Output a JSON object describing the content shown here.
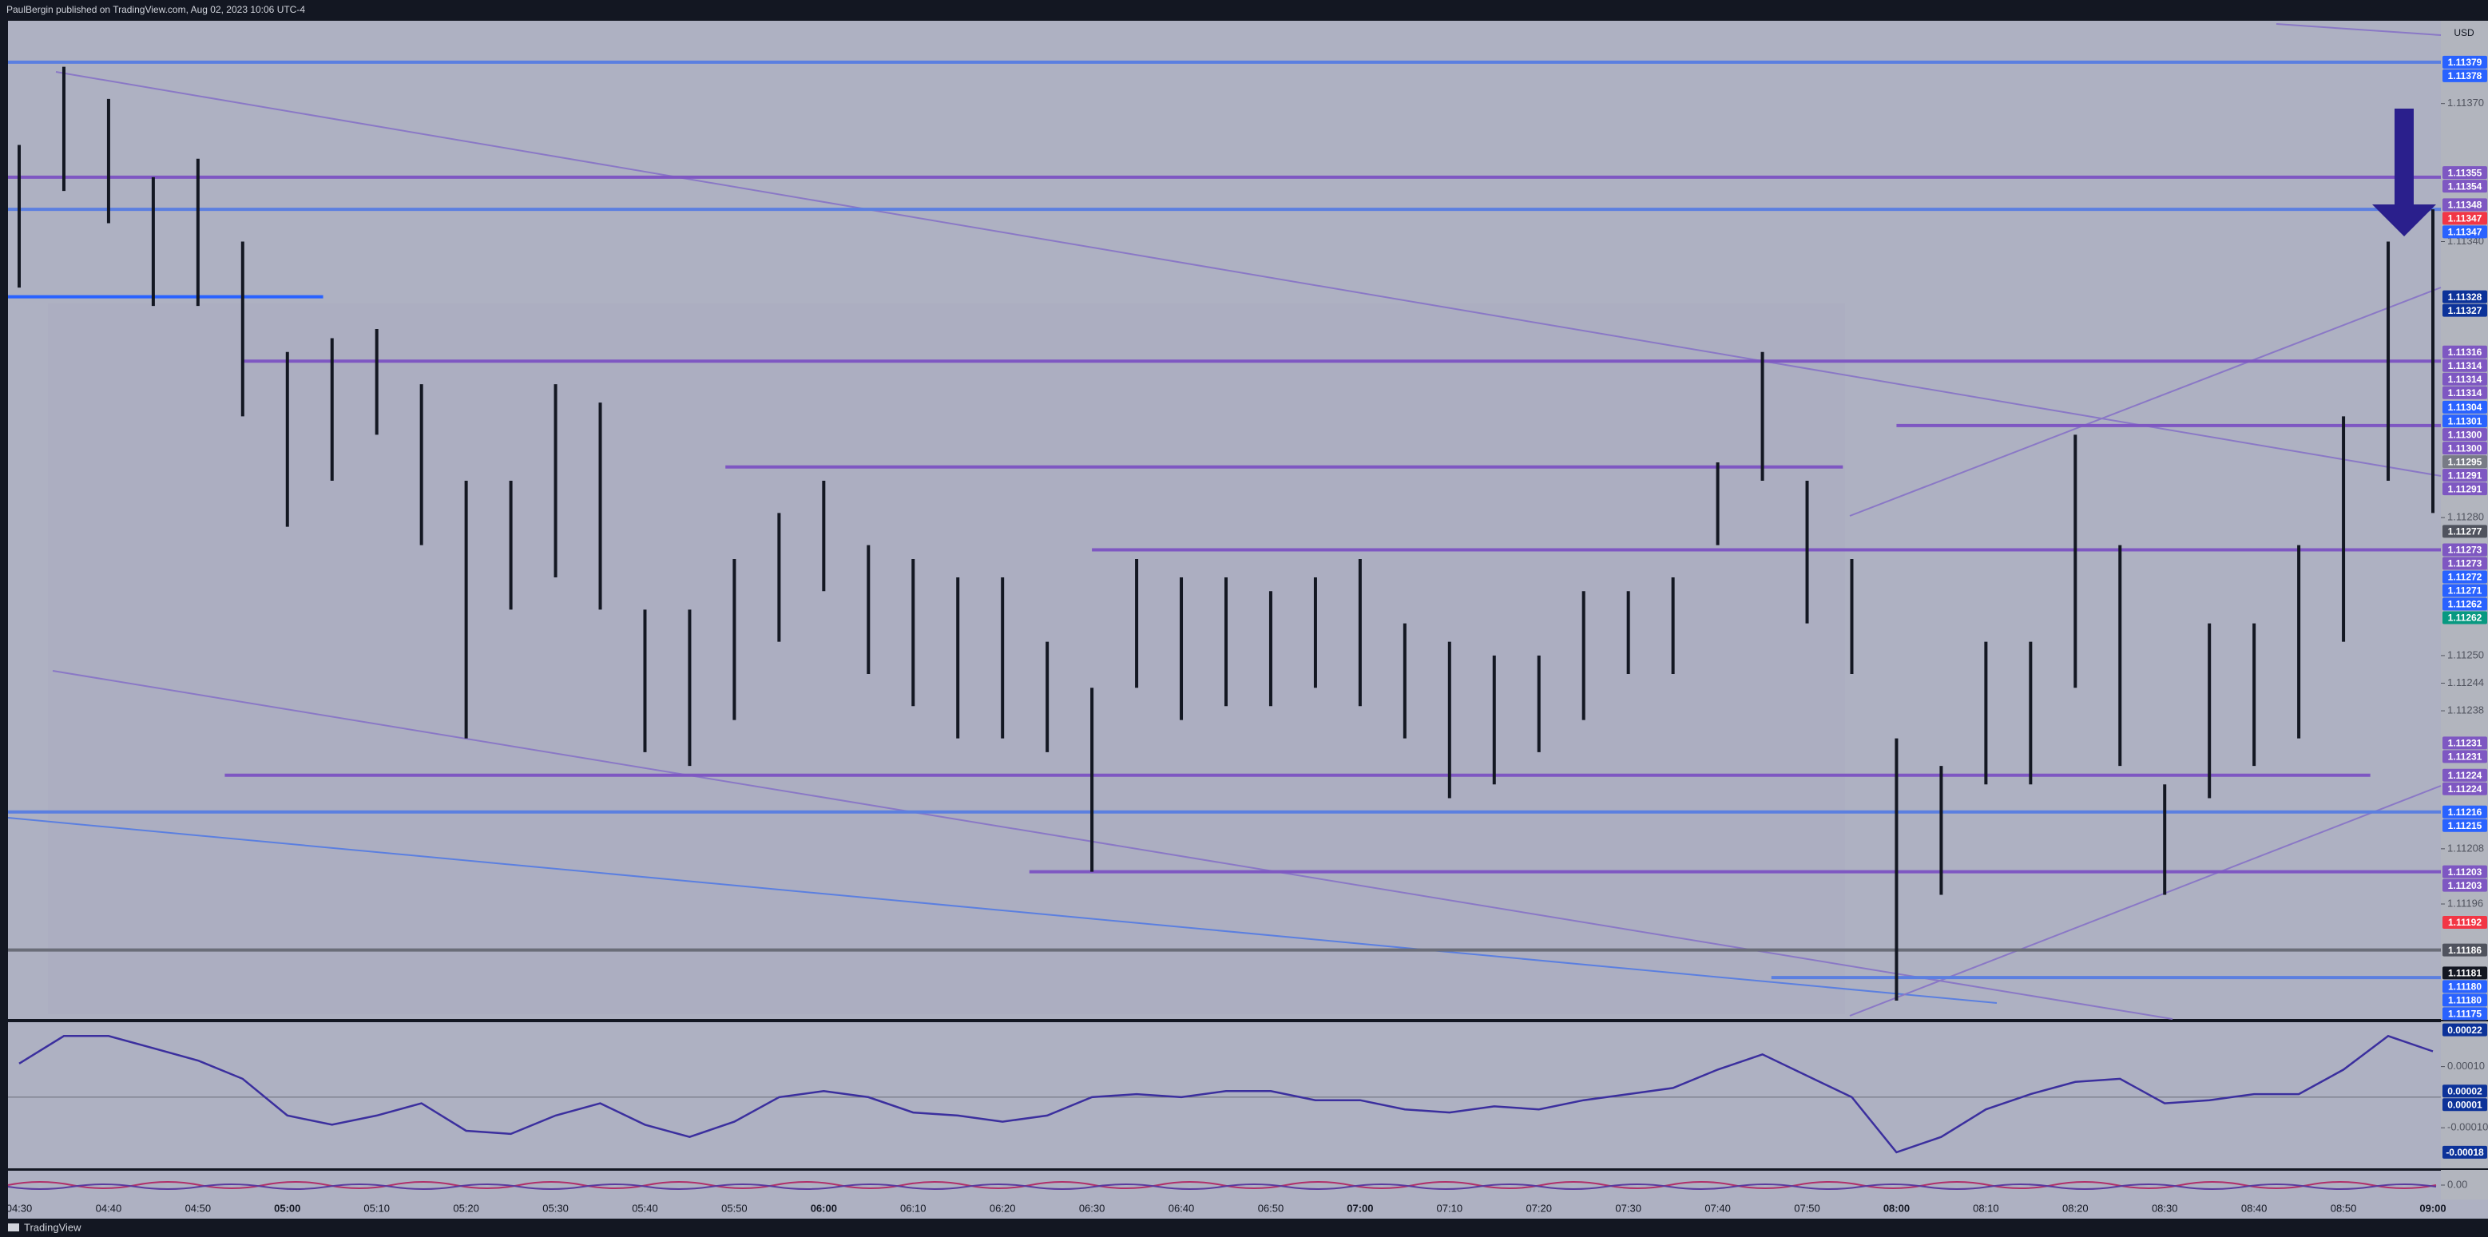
{
  "chart_data": [
    {
      "type": "ohlc",
      "title": "PaulBergin published on TradingView.com, Aug 02, 2023 10:06 UTC-4",
      "source": "TradingView",
      "currency": "USD",
      "color": "#131722",
      "x": [
        "04:30",
        "04:35",
        "04:40",
        "04:45",
        "04:50",
        "04:55",
        "05:00",
        "05:05",
        "05:10",
        "05:15",
        "05:20",
        "05:25",
        "05:30",
        "05:35",
        "05:40",
        "05:45",
        "05:50",
        "05:55",
        "06:00",
        "06:05",
        "06:10",
        "06:15",
        "06:20",
        "06:25",
        "06:30",
        "06:35",
        "06:40",
        "06:45",
        "06:50",
        "06:55",
        "07:00",
        "07:05",
        "07:10",
        "07:15",
        "07:20",
        "07:25",
        "07:30",
        "07:35",
        "07:40",
        "07:45",
        "07:50",
        "07:55",
        "08:00",
        "08:05",
        "08:10",
        "08:15",
        "08:20",
        "08:25",
        "08:30",
        "08:35",
        "08:40",
        "08:45",
        "08:50",
        "08:55",
        "09:00"
      ],
      "high": [
        1.11361,
        1.11378,
        1.11371,
        1.11354,
        1.11358,
        1.1134,
        1.11316,
        1.11319,
        1.11321,
        1.11309,
        1.11288,
        1.11288,
        1.11309,
        1.11305,
        1.1126,
        1.1126,
        1.11271,
        1.11281,
        1.11288,
        1.11274,
        1.11271,
        1.11267,
        1.11267,
        1.11253,
        1.11243,
        1.11271,
        1.11267,
        1.11267,
        1.11264,
        1.11267,
        1.11271,
        1.11257,
        1.11253,
        1.1125,
        1.1125,
        1.11264,
        1.11264,
        1.11267,
        1.11292,
        1.11316,
        1.11288,
        1.11271,
        1.11232,
        1.11226,
        1.11253,
        1.11253,
        1.11298,
        1.11274,
        1.11222,
        1.11257,
        1.11257,
        1.11274,
        1.11302,
        1.1134,
        1.11347
      ],
      "low": [
        1.1133,
        1.11351,
        1.11344,
        1.11326,
        1.11326,
        1.11302,
        1.11278,
        1.11288,
        1.11298,
        1.11274,
        1.11232,
        1.1126,
        1.11267,
        1.1126,
        1.11229,
        1.11226,
        1.11236,
        1.11253,
        1.11264,
        1.11246,
        1.11239,
        1.11232,
        1.11232,
        1.11229,
        1.11203,
        1.11243,
        1.11236,
        1.11239,
        1.11239,
        1.11243,
        1.11239,
        1.11232,
        1.11219,
        1.11222,
        1.11229,
        1.11236,
        1.11246,
        1.11246,
        1.11274,
        1.11288,
        1.11257,
        1.11246,
        1.11175,
        1.11198,
        1.11222,
        1.11222,
        1.11243,
        1.11226,
        1.11198,
        1.11219,
        1.11226,
        1.11232,
        1.11253,
        1.11288,
        1.11281
      ],
      "xticks": [
        "04:30",
        "04:40",
        "04:50",
        "05:00",
        "05:10",
        "05:20",
        "05:30",
        "05:40",
        "05:50",
        "06:00",
        "06:10",
        "06:20",
        "06:30",
        "06:40",
        "06:50",
        "07:00",
        "07:10",
        "07:20",
        "07:30",
        "07:40",
        "07:50",
        "08:00",
        "08:10",
        "08:20",
        "08:30",
        "08:40",
        "08:50",
        "09:00"
      ],
      "ylim": [
        1.11171,
        1.11388
      ],
      "yticks": [
        {
          "value": 1.1137,
          "label": "1.11370"
        },
        {
          "value": 1.1134,
          "label": "1.11340"
        },
        {
          "value": 1.1128,
          "label": "1.11280"
        },
        {
          "value": 1.1125,
          "label": "1.11250"
        },
        1.11244,
        1.11238,
        1.11208,
        1.11196
      ],
      "levels": [
        {
          "value": 1.11379,
          "color": "#5b7fe0"
        },
        {
          "value": 1.11354,
          "color": "#7e57c2"
        },
        {
          "value": 1.11347,
          "color": "#5b7fe0"
        },
        {
          "value": 1.11328,
          "color": "#2962ff",
          "end": "05:04"
        },
        {
          "value": 1.11314,
          "color": "#7e57c2",
          "start": "04:55"
        },
        {
          "value": 1.113,
          "color": "#7e57c2",
          "start": "08:00"
        },
        {
          "value": 1.11291,
          "color": "#7e57c2",
          "start": "05:49",
          "end": "07:54"
        },
        {
          "value": 1.11273,
          "color": "#7e57c2",
          "start": "06:30"
        },
        {
          "value": 1.11224,
          "color": "#7e57c2",
          "start": "04:53",
          "end": "08:53"
        },
        {
          "value": 1.11216,
          "color": "#5b7fe0"
        },
        {
          "value": 1.11203,
          "color": "#7e57c2",
          "start": "06:23"
        },
        {
          "value": 1.11186,
          "color": "#6a6d78"
        },
        {
          "value": 1.1118,
          "color": "#5b7fe0",
          "start": "07:46"
        }
      ],
      "tags": [
        {
          "value": 1.11379,
          "color": "#2962ff"
        },
        {
          "value": 1.11378,
          "color": "#2962ff"
        },
        {
          "value": 1.11355,
          "color": "#7e57c2"
        },
        {
          "value": 1.11354,
          "color": "#7e57c2"
        },
        {
          "value": 1.11348,
          "color": "#7e57c2"
        },
        {
          "value": 1.11347,
          "color": "#f23645"
        },
        {
          "value": 1.11347,
          "color": "#2962ff"
        },
        {
          "value": 1.11328,
          "color": "#0c3299"
        },
        {
          "value": 1.11327,
          "color": "#0c3299"
        },
        {
          "value": 1.11316,
          "color": "#7e57c2"
        },
        {
          "value": 1.11314,
          "color": "#7e57c2"
        },
        {
          "value": 1.11314,
          "color": "#7e57c2"
        },
        {
          "value": 1.11314,
          "color": "#7e57c2"
        },
        {
          "value": 1.11304,
          "color": "#2962ff"
        },
        {
          "value": 1.11301,
          "color": "#2962ff"
        },
        {
          "value": 1.113,
          "label": "1.11300",
          "color": "#7e57c2"
        },
        {
          "value": 1.113,
          "label": "1.11300",
          "color": "#7e57c2"
        },
        {
          "value": 1.11295,
          "color": "#787b86"
        },
        {
          "value": 1.11291,
          "color": "#7e57c2"
        },
        {
          "value": 1.11291,
          "color": "#7e57c2"
        },
        {
          "value": 1.11277,
          "color": "#50535e"
        },
        {
          "value": 1.11273,
          "color": "#7e57c2"
        },
        {
          "value": 1.11273,
          "color": "#7e57c2"
        },
        {
          "value": 1.11272,
          "color": "#2962ff"
        },
        {
          "value": 1.11271,
          "color": "#2962ff"
        },
        {
          "value": 1.11262,
          "color": "#2962ff"
        },
        {
          "value": 1.11262,
          "color": "#089981"
        },
        {
          "value": 1.11231,
          "color": "#7e57c2"
        },
        {
          "value": 1.11231,
          "color": "#7e57c2"
        },
        {
          "value": 1.11224,
          "color": "#7e57c2"
        },
        {
          "value": 1.11224,
          "color": "#7e57c2"
        },
        {
          "value": 1.11216,
          "color": "#2962ff"
        },
        {
          "value": 1.11215,
          "color": "#2962ff"
        },
        {
          "value": 1.11203,
          "color": "#7e57c2"
        },
        {
          "value": 1.11203,
          "color": "#7e57c2"
        },
        {
          "value": 1.11192,
          "color": "#f23645"
        },
        {
          "value": 1.11186,
          "color": "#50535e"
        },
        {
          "value": 1.11181,
          "color": "#131722"
        },
        {
          "value": 1.1118,
          "label": "1.11180",
          "color": "#2962ff"
        },
        {
          "value": 1.1118,
          "label": "1.11180",
          "color": "#2962ff"
        },
        {
          "value": 1.11175,
          "color": "#2962ff"
        }
      ]
    },
    {
      "type": "line",
      "color": "#3b2f9e",
      "x": [
        "04:30",
        "04:35",
        "04:40",
        "04:45",
        "04:50",
        "04:55",
        "05:00",
        "05:05",
        "05:10",
        "05:15",
        "05:20",
        "05:25",
        "05:30",
        "05:35",
        "05:40",
        "05:45",
        "05:50",
        "05:55",
        "06:00",
        "06:05",
        "06:10",
        "06:15",
        "06:20",
        "06:25",
        "06:30",
        "06:35",
        "06:40",
        "06:45",
        "06:50",
        "06:55",
        "07:00",
        "07:05",
        "07:10",
        "07:15",
        "07:20",
        "07:25",
        "07:30",
        "07:35",
        "07:40",
        "07:45",
        "07:50",
        "07:55",
        "08:00",
        "08:05",
        "08:10",
        "08:15",
        "08:20",
        "08:25",
        "08:30",
        "08:35",
        "08:40",
        "08:45",
        "08:50",
        "08:55",
        "09:00"
      ],
      "values": [
        0.00011,
        0.0002,
        0.0002,
        0.00016,
        0.00012,
        6e-05,
        -6e-05,
        -9e-05,
        -6e-05,
        -2e-05,
        -0.00011,
        -0.00012,
        -6e-05,
        -2e-05,
        -9e-05,
        -0.00013,
        -8e-05,
        0,
        2e-05,
        0,
        -5e-05,
        -6e-05,
        -8e-05,
        -6e-05,
        0,
        1e-05,
        0,
        2e-05,
        2e-05,
        -1e-05,
        -1e-05,
        -4e-05,
        -5e-05,
        -3e-05,
        -4e-05,
        -1e-05,
        1e-05,
        3e-05,
        9e-05,
        0.00014,
        7e-05,
        0,
        -0.00018,
        -0.00013,
        -4e-05,
        1e-05,
        5e-05,
        6e-05,
        -2e-05,
        -1e-05,
        1e-05,
        1e-05,
        9e-05,
        0.0002,
        0.00015
      ],
      "ylim": [
        -0.00023,
        0.00024
      ],
      "yticks": [
        {
          "value": 0.0001,
          "label": "0.00010"
        },
        {
          "value": -0.0001,
          "label": "-0.00010"
        }
      ],
      "tags": [
        {
          "value": 0.00022,
          "color": "#0c3299"
        },
        {
          "value": 2e-05,
          "color": "#0c3299"
        },
        {
          "value": 1e-05,
          "color": "#0c3299"
        },
        {
          "value": -0.00018,
          "color": "#0c3299"
        }
      ]
    },
    {
      "type": "line",
      "yticks": [
        {
          "value": 0,
          "label": "0.00"
        }
      ]
    }
  ]
}
